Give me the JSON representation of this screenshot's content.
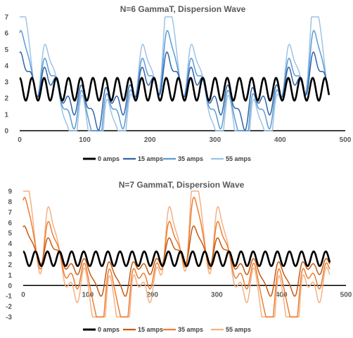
{
  "chart_data": [
    {
      "type": "line",
      "title": "N=6 GammaT, Dispersion Wave",
      "xlabel": "",
      "ylabel": "",
      "xlim": [
        0,
        500
      ],
      "ylim": [
        0,
        7
      ],
      "x_ticks": [
        "0",
        "100",
        "200",
        "300",
        "400",
        "500"
      ],
      "y_ticks": [
        "0",
        "1",
        "2",
        "3",
        "4",
        "5",
        "6",
        "7"
      ],
      "grid": false,
      "legend": "bottom",
      "n_poles": 6,
      "x_end": 475,
      "series": [
        {
          "name": "0 amps",
          "color": "#000000",
          "baseline": 2.55,
          "amp": 0.7,
          "pulse": 0
        },
        {
          "name": "15 amps",
          "color": "#2f64a8",
          "baseline": 2.45,
          "amp": 0.55,
          "pulse": 1.5
        },
        {
          "name": "35 amps",
          "color": "#5b9bd5",
          "baseline": 2.3,
          "amp": 0.5,
          "pulse": 2.7
        },
        {
          "name": "55 amps",
          "color": "#9dc3e6",
          "baseline": 2.15,
          "amp": 0.5,
          "pulse": 4.3
        }
      ]
    },
    {
      "type": "line",
      "title": "N=7 GammaT, Dispersion Wave",
      "xlabel": "",
      "ylabel": "",
      "xlim": [
        0,
        500
      ],
      "ylim": [
        -3,
        9
      ],
      "x_ticks": [
        "0",
        "100",
        "200",
        "300",
        "400",
        "500"
      ],
      "y_ticks": [
        "-3",
        "-2",
        "-1",
        "0",
        "1",
        "2",
        "3",
        "4",
        "5",
        "6",
        "7",
        "8",
        "9"
      ],
      "grid": false,
      "legend": "bottom",
      "n_poles": 7,
      "x_end": 475,
      "series": [
        {
          "name": "0 amps",
          "color": "#000000",
          "baseline": 2.55,
          "amp": 0.7,
          "pulse": 0
        },
        {
          "name": "15 amps",
          "color": "#c55a11",
          "baseline": 2.2,
          "amp": 0.5,
          "pulse": 2.4
        },
        {
          "name": "35 amps",
          "color": "#ed7d31",
          "baseline": 1.7,
          "amp": 0.7,
          "pulse": 4.8
        },
        {
          "name": "55 amps",
          "color": "#f4b183",
          "baseline": 1.2,
          "amp": 0.9,
          "pulse": 7.0
        }
      ]
    }
  ]
}
